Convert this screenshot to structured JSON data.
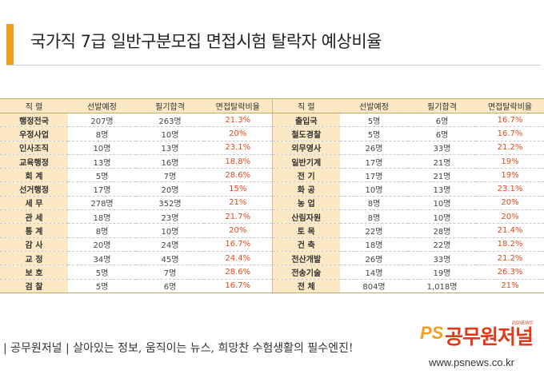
{
  "title": "국가직 7급 일반구분모집 면접시험 탈락자 예상비율",
  "headers": [
    "직 렬",
    "선발예정",
    "필기합격",
    "면접탈락비율"
  ],
  "left_rows": [
    [
      "행정전국",
      "207명",
      "263명",
      "21.3%"
    ],
    [
      "우정사업",
      "8명",
      "10명",
      "20%"
    ],
    [
      "인사조직",
      "10명",
      "13명",
      "23.1%"
    ],
    [
      "교육행정",
      "13명",
      "16명",
      "18.8%"
    ],
    [
      "회 계",
      "5명",
      "7명",
      "28.6%"
    ],
    [
      "선거행정",
      "17명",
      "20명",
      "15%"
    ],
    [
      "세 무",
      "278명",
      "352명",
      "21%"
    ],
    [
      "관 세",
      "18명",
      "23명",
      "21.7%"
    ],
    [
      "통 계",
      "8명",
      "10명",
      "20%"
    ],
    [
      "감 사",
      "20명",
      "24명",
      "16.7%"
    ],
    [
      "교 정",
      "34명",
      "45명",
      "24.4%"
    ],
    [
      "보 호",
      "5명",
      "7명",
      "28.6%"
    ],
    [
      "검 찰",
      "5명",
      "6명",
      "16.7%"
    ]
  ],
  "right_rows": [
    [
      "출입국",
      "5명",
      "6명",
      "16.7%"
    ],
    [
      "철도경찰",
      "5명",
      "6명",
      "16.7%"
    ],
    [
      "외무영사",
      "26명",
      "33명",
      "21.2%"
    ],
    [
      "일반기계",
      "17명",
      "21명",
      "19%"
    ],
    [
      "전 기",
      "17명",
      "21명",
      "19%"
    ],
    [
      "화 공",
      "10명",
      "13명",
      "23.1%"
    ],
    [
      "농 업",
      "8명",
      "10명",
      "20%"
    ],
    [
      "산림자원",
      "8명",
      "10명",
      "20%"
    ],
    [
      "토 목",
      "22명",
      "28명",
      "21.4%"
    ],
    [
      "건 축",
      "18명",
      "22명",
      "18.2%"
    ],
    [
      "전산개발",
      "26명",
      "33명",
      "21.2%"
    ],
    [
      "전송기술",
      "14명",
      "19명",
      "26.3%"
    ],
    [
      "전 체",
      "804명",
      "1,018명",
      "21%"
    ]
  ],
  "footer": {
    "text": "| 공무원저널 | 살아있는 정보, 움직이는 뉴스, 희망찬 수험생활의 필수엔진!",
    "logo_ps": "PS",
    "logo_name": "공무원저널",
    "logo_sub": "PSNEWS",
    "url": "www.psnews.co.kr"
  }
}
